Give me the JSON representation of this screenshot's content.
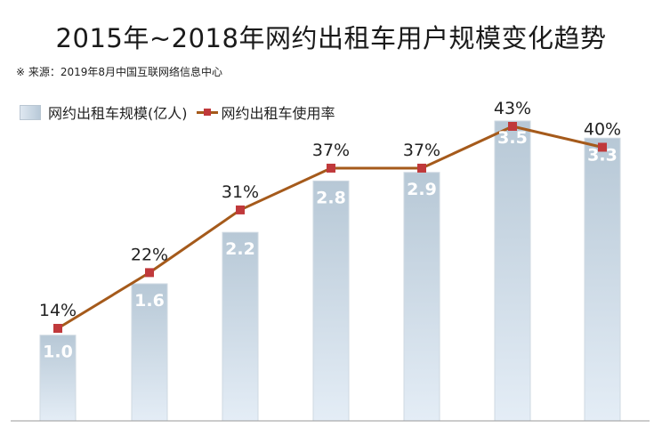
{
  "title": "2015年~2018年网约出租车用户规模变化趋势",
  "source": "※ 来源：2019年8月中国互联网络信息中心",
  "legend": {
    "bar": "网约出租车规模(亿人)",
    "line": "网约出租车使用率"
  },
  "colors": {
    "bar_top": "#b7c8d6",
    "bar_bottom": "#e4edf6",
    "line": "#a55a1b",
    "marker": "#c0393b",
    "axis": "#999999"
  },
  "chart_data": {
    "type": "bar",
    "series": [
      {
        "name": "网约出租车规模(亿人)",
        "type": "bar",
        "values": [
          1.0,
          1.6,
          2.2,
          2.8,
          2.9,
          3.5,
          3.3
        ],
        "labels": [
          "1.0",
          "1.6",
          "2.2",
          "2.8",
          "2.9",
          "3.5",
          "3.3"
        ]
      },
      {
        "name": "网约出租车使用率",
        "type": "line",
        "values": [
          14,
          22,
          31,
          37,
          37,
          43,
          40
        ],
        "labels": [
          "14%",
          "22%",
          "31%",
          "37%",
          "37%",
          "43%",
          "40%"
        ]
      }
    ],
    "ylim_bar": [
      0,
      3.5
    ],
    "ylim_line": [
      0,
      43
    ],
    "grid": false,
    "legend_position": "top-left"
  }
}
